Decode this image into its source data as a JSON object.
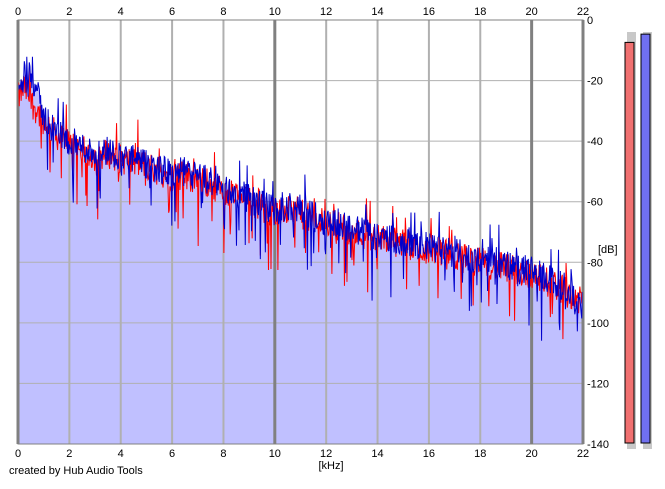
{
  "credit": "created by Hub Audio Tools",
  "chart_data": {
    "type": "line",
    "xlabel": "[kHz]",
    "ylabel": "[dB]",
    "xlim": [
      0,
      22
    ],
    "ylim": [
      -140,
      0
    ],
    "x_ticks": [
      0,
      2,
      4,
      6,
      8,
      10,
      12,
      14,
      16,
      18,
      20,
      22
    ],
    "y_ticks": [
      0,
      -20,
      -40,
      -60,
      -80,
      -100,
      -120,
      -140
    ],
    "grid": true,
    "colors": {
      "fill": "#c0c0ff",
      "left_channel": "#ff0000",
      "right_channel": "#0000cc",
      "major_grid": "#808080",
      "minor_grid": "#b0b0b0",
      "meter_left": "#f07070",
      "meter_right": "#7070f0"
    },
    "series": [
      {
        "color": "#ff0000",
        "x": [
          0,
          0.25,
          0.5,
          1,
          1.5,
          2,
          2.5,
          3,
          3.5,
          4,
          4.5,
          5,
          5.5,
          6,
          6.5,
          7,
          7.5,
          8,
          8.5,
          9,
          9.5,
          10,
          10.5,
          11,
          11.5,
          12,
          12.5,
          13,
          13.5,
          14,
          14.5,
          15,
          15.5,
          16,
          16.5,
          17,
          17.5,
          18,
          18.5,
          19,
          19.5,
          20,
          20.5,
          21,
          21.5,
          22
        ],
        "values": [
          -26,
          -22,
          -27,
          -33,
          -38,
          -41,
          -43,
          -45,
          -44,
          -46,
          -47,
          -48,
          -50,
          -52,
          -51,
          -53,
          -54,
          -57,
          -58,
          -60,
          -62,
          -64,
          -63,
          -64,
          -66,
          -67,
          -68,
          -70,
          -71,
          -72,
          -73,
          -74,
          -75,
          -76,
          -77,
          -78,
          -79,
          -80,
          -81,
          -82,
          -83,
          -84,
          -86,
          -88,
          -90,
          -94
        ]
      },
      {
        "color": "#0000cc",
        "x": [
          0,
          0.25,
          0.5,
          1,
          1.5,
          2,
          2.5,
          3,
          3.5,
          4,
          4.5,
          5,
          5.5,
          6,
          6.5,
          7,
          7.5,
          8,
          8.5,
          9,
          9.5,
          10,
          10.5,
          11,
          11.5,
          12,
          12.5,
          13,
          13.5,
          14,
          14.5,
          15,
          15.5,
          16,
          16.5,
          17,
          17.5,
          18,
          18.5,
          19,
          19.5,
          20,
          20.5,
          21,
          21.5,
          22
        ],
        "values": [
          -24,
          -20,
          -17,
          -32,
          -37,
          -40,
          -42,
          -44,
          -43,
          -45,
          -46,
          -48,
          -49,
          -51,
          -50,
          -52,
          -53,
          -56,
          -57,
          -59,
          -61,
          -63,
          -62,
          -63,
          -65,
          -66,
          -67,
          -69,
          -70,
          -71,
          -72,
          -73,
          -74,
          -75,
          -76,
          -77,
          -78,
          -79,
          -80,
          -81,
          -82,
          -83,
          -85,
          -87,
          -89,
          -95
        ]
      }
    ],
    "meters": [
      {
        "color": "#f07070",
        "level": 0.97
      },
      {
        "color": "#7070f0",
        "level": 0.99
      }
    ]
  }
}
